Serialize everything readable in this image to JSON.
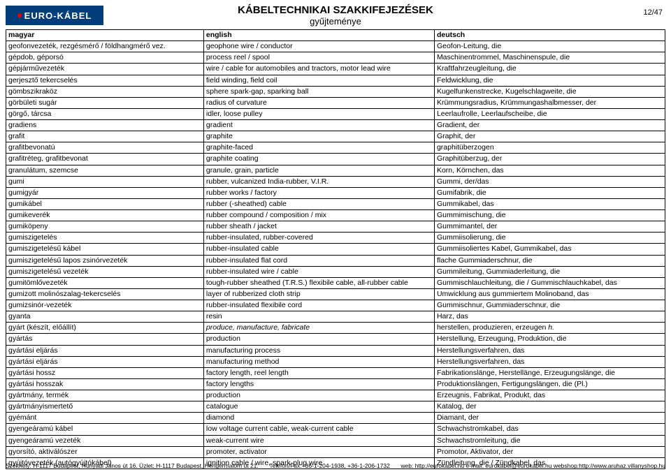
{
  "logo_text": "EURO-KÁBEL",
  "title": "KÁBELTECHNIKAI SZAKKIFEJEZÉSEK",
  "subtitle": "gyűjteménye",
  "page_num": "12/47",
  "headers": [
    "magyar",
    "english",
    "deutsch"
  ],
  "rows": [
    [
      "geofonvezeték, rezgésmérő / földhangmérő vez.",
      "geophone wire / conductor",
      "Geofon-Leitung, die"
    ],
    [
      "gépdob, géporsó",
      "process reel / spool",
      "Maschinentrommel, Maschinenspule, die"
    ],
    [
      "gépjárművezeték",
      "wire / cable for automobiles and tractors, motor lead wire",
      "Kraftfahrzeugleitung, die"
    ],
    [
      "gerjesztő tekercselés",
      "field winding, field coil",
      "Feldwicklung, die"
    ],
    [
      "gömbszikraköz",
      "sphere spark-gap, sparking ball",
      "Kugelfunkenstrecke, Kugelschlagweite, die"
    ],
    [
      "görbületi sugár",
      "radius of curvature",
      "Krümmungsradius, Krümmungashalbmesser, der"
    ],
    [
      "görgő, tárcsa",
      "idler, loose pulley",
      "Leerlaufrolle, Leerlaufscheibe, die"
    ],
    [
      "gradiens",
      "gradient",
      "Gradient, der"
    ],
    [
      "grafit",
      "graphite",
      "Graphit, der"
    ],
    [
      "grafitbevonatú",
      "graphite-faced",
      "graphitüberzogen"
    ],
    [
      "grafitréteg, grafitbevonat",
      "graphite coating",
      "Graphitüberzug, der"
    ],
    [
      "granulátum, szemcse",
      "granule, grain, particle",
      "Korn, Körnchen, das"
    ],
    [
      "gumi",
      "rubber, vulcanized India-rubber, V.I.R.",
      "Gummi, der/das"
    ],
    [
      "gumigyár",
      "rubber works / factory",
      "Gumifabrik, die"
    ],
    [
      "gumikábel",
      "rubber (-sheathed) cable",
      "Gummikabel, das"
    ],
    [
      "gumikeverék",
      "rubber compound / composition / mix",
      "Gummimischung, die"
    ],
    [
      "gumiköpeny",
      "rubber sheath / jacket",
      "Gummimantel, der"
    ],
    [
      "gumiszigetelés",
      "rubber-insulated, rubber-covered",
      "Gummiisolierung, die"
    ],
    [
      "gumiszigetelésű kábel",
      "rubber-insulated cable",
      "Gummiisoliertes Kabel, Gummikabel, das"
    ],
    [
      "gumiszigetelésű lapos zsinórvezeték",
      "rubber-insulated flat cord",
      "flache Gummiaderschnur, die"
    ],
    [
      "gumiszigetelésű vezeték",
      "rubber-insulated wire / cable",
      "Gummileitung, Gummiaderleitung, die"
    ],
    [
      "gumitömlővezeték",
      "tough-rubber sheathed (T.R.S.) flexibile cable, all-rubber cable",
      "Gummischlauchleitung, die / Gummischlauchkabel, das"
    ],
    [
      "gumizott molinószalag-tekercselés",
      "layer of rubberized cloth strip",
      "Umwicklung aus gummiertem Molinoband, das"
    ],
    [
      "gumizsinór-vezeték",
      "rubber-insulated flexibile cord",
      "Gummischnur, Gummiaderschnur, die"
    ],
    [
      "gyanta",
      "resin",
      "Harz, das"
    ],
    [
      "gyárt (készít, előállít)",
      "<i>produce, manufacture, fabricate</i>",
      "herstellen, produzieren, erzeugen <i>h.</i>"
    ],
    [
      "gyártás",
      "production",
      "Herstellung, Erzeugung, Produktion, die"
    ],
    [
      "gyártási eljárás",
      "manufacturing process",
      "Herstellungsverfahren, das"
    ],
    [
      "gyártási eljárás",
      "manufacturing method",
      "Herstellungsverfahren, das"
    ],
    [
      "gyártási hossz",
      "factory length, reel length",
      "Fabrikationslänge, Herstellänge, Erzeugungslänge, die"
    ],
    [
      "gyártási hosszak",
      "factory lengths",
      "Produktionslängen, Fertigungslängen, die (Pl.)"
    ],
    [
      "gyártmány, termék",
      "production",
      "Erzeugnis, Fabrikat, Produkt, das"
    ],
    [
      "gyártmányismertető",
      "catalogue",
      "Katalog, der"
    ],
    [
      "gyémánt",
      "diamond",
      "Diamant, der"
    ],
    [
      "gyengeáramú kábel",
      "low voltage current cable, weak-current cable",
      "Schwachstromkabel, das"
    ],
    [
      "gyengeáramú vezeték",
      "weak-current wire",
      "Schwachstromleitung, die"
    ],
    [
      "gyorsító, aktiválószer",
      "promoter, activator",
      "Promotor, Aktivator, der"
    ],
    [
      "gyújtóvezeték (autógyújtókábel)",
      "ignition cable / wire, spark-plug wire",
      "Zündleitung, die / Zündkabel, das"
    ]
  ],
  "footer_left": "Székhely: H-1117 Budapest, Hunyadi János út 16. Üzlet: H-1117 Budapest, Hengermalom út 21.",
  "footer_mid": "Telefon/Fax:+36-1-204-1938, +36-1-206-1732",
  "footer_right": "web: http://eurokabel.hu  e-mail: eurokabel@eurokabel.hu  webshop:http://www.aruhaz.villanyshop.hu"
}
